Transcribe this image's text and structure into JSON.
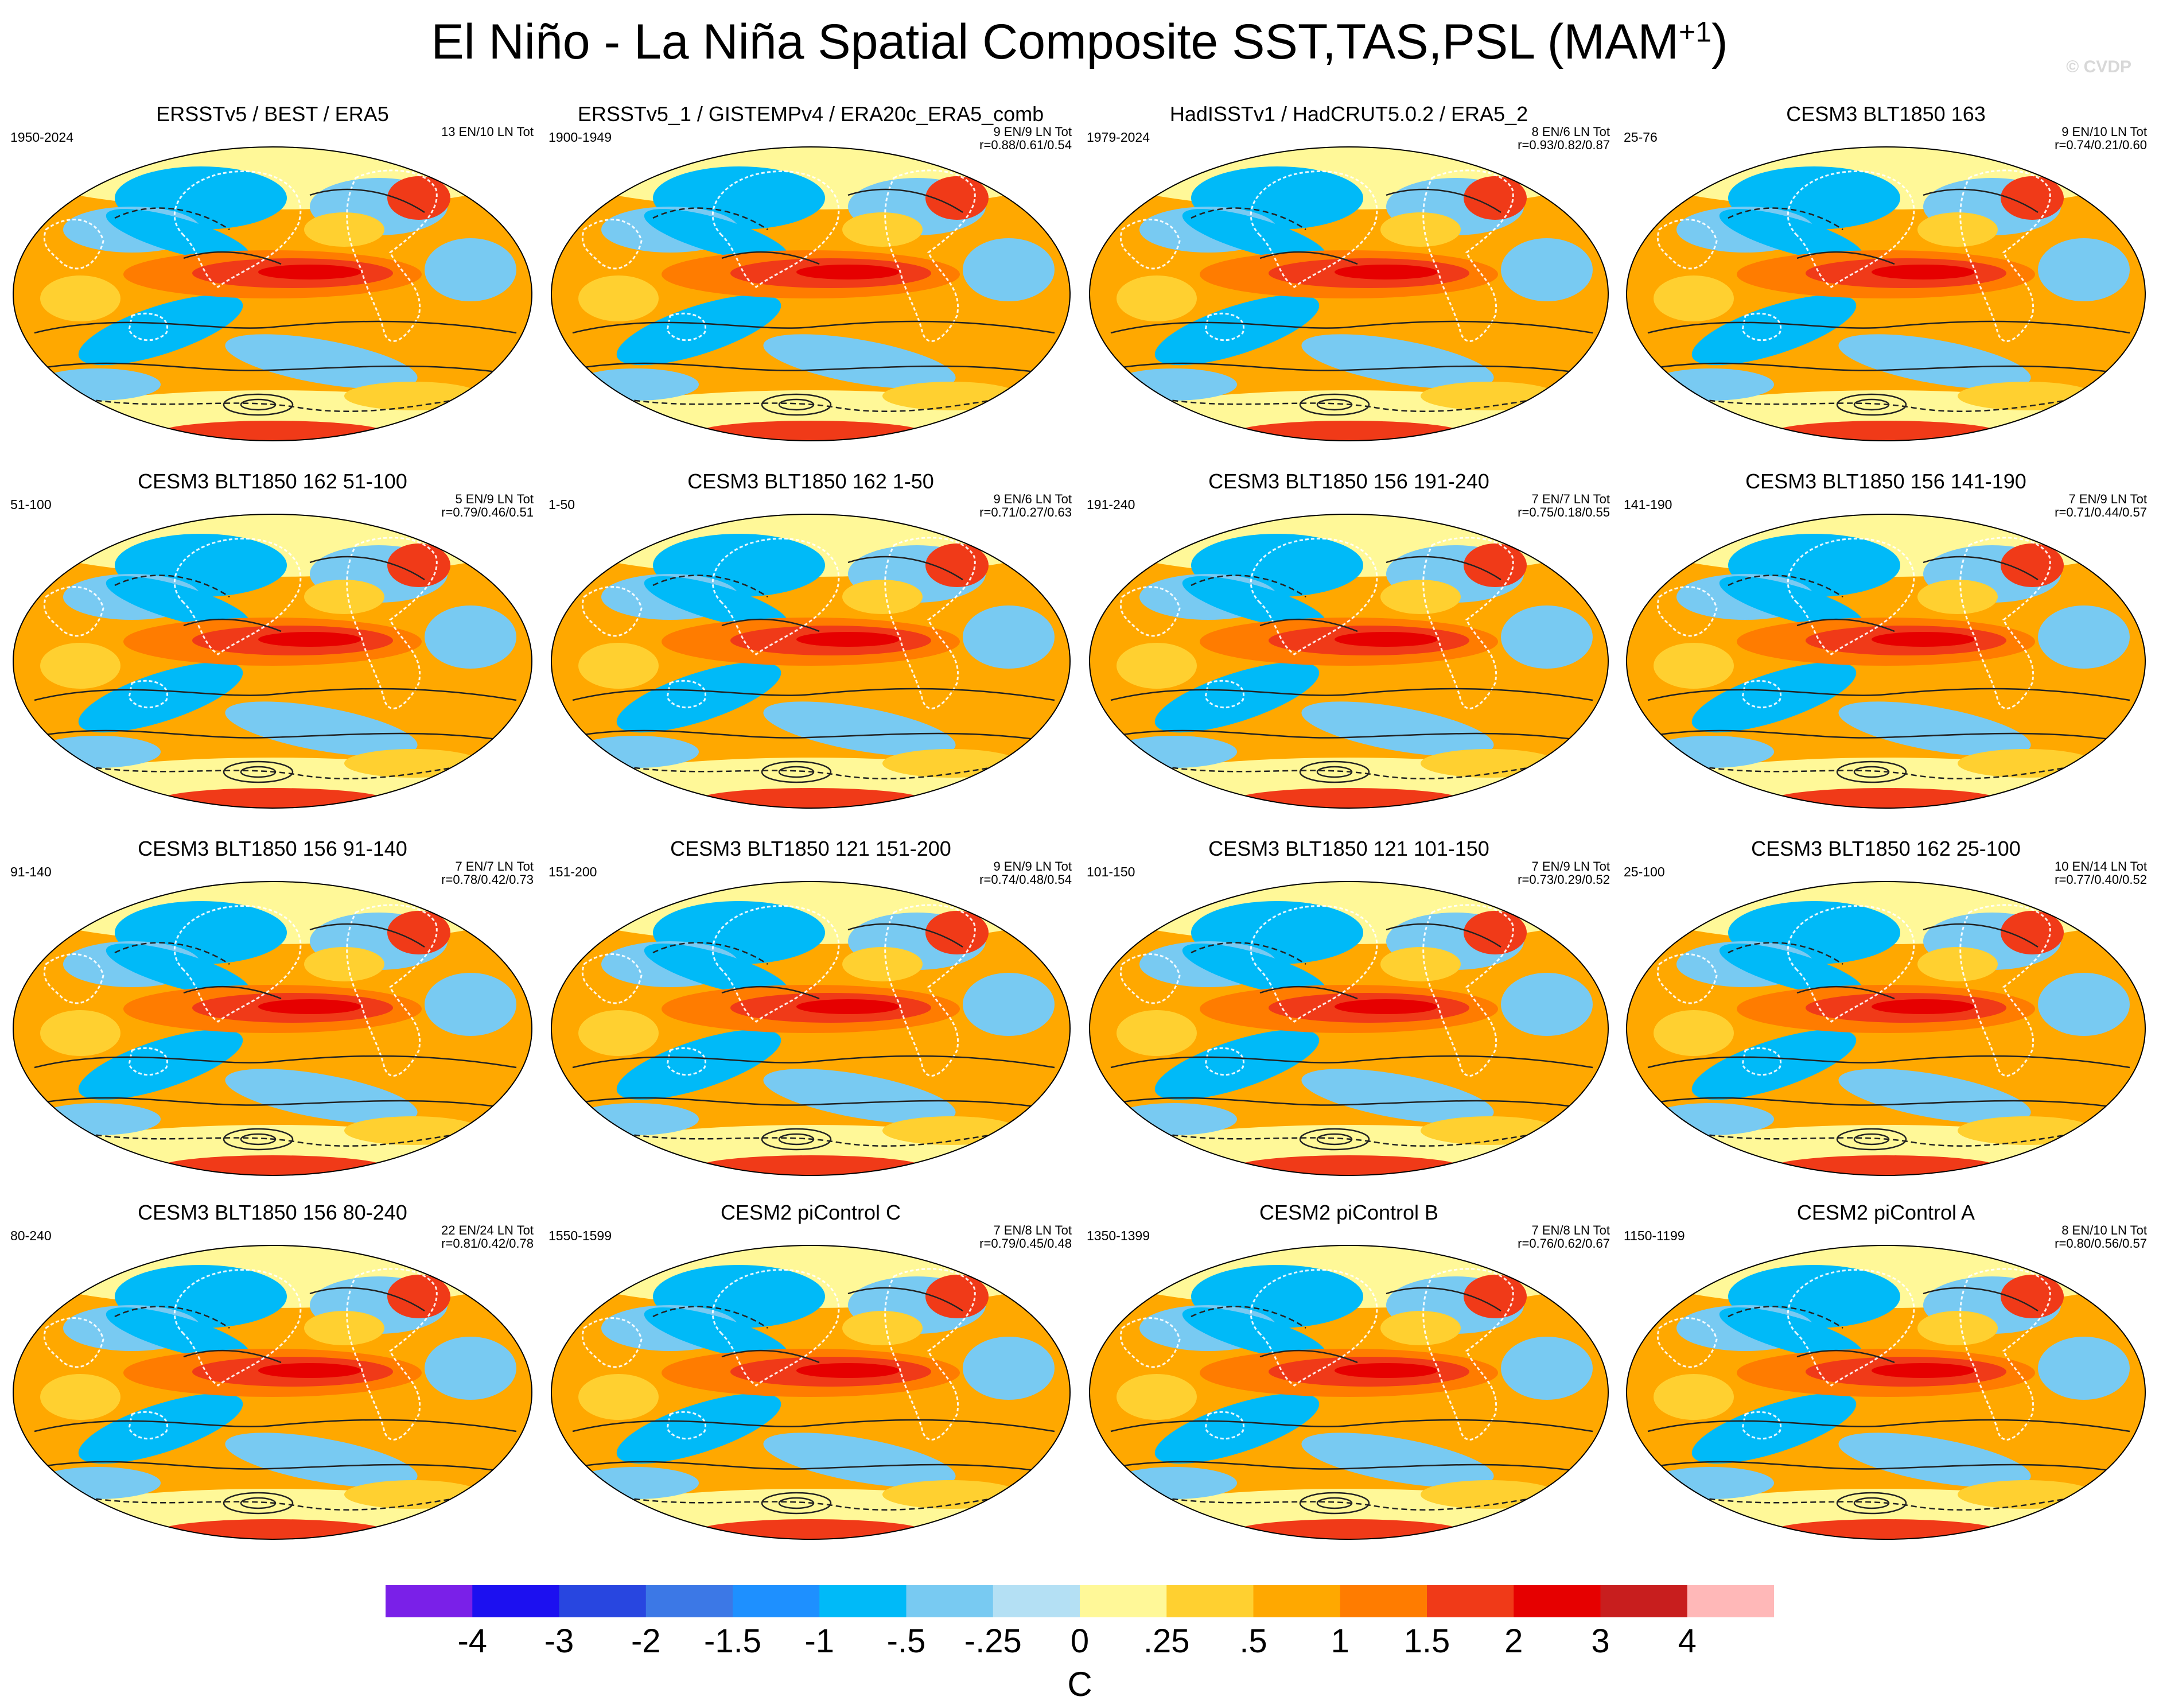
{
  "title_main": "El Niño - La Niña Spatial Composite SST,TAS,PSL (MAM",
  "title_sup": "+1",
  "title_close": ")",
  "watermark": "© CVDP",
  "panels": [
    {
      "title": "ERSSTv5 / BEST / ERA5",
      "years": "1950-2024",
      "counts": "13 EN/10 LN Tot",
      "corr": ""
    },
    {
      "title": "ERSSTv5_1 / GISTEMPv4 / ERA20c_ERA5_comb",
      "years": "1900-1949",
      "counts": "9 EN/9 LN Tot",
      "corr": "r=0.88/0.61/0.54"
    },
    {
      "title": "HadISSTv1 / HadCRUT5.0.2 / ERA5_2",
      "years": "1979-2024",
      "counts": "8 EN/6 LN Tot",
      "corr": "r=0.93/0.82/0.87"
    },
    {
      "title": "CESM3 BLT1850 163",
      "years": "25-76",
      "counts": "9 EN/10 LN Tot",
      "corr": "r=0.74/0.21/0.60"
    },
    {
      "title": "CESM3 BLT1850 162 51-100",
      "years": "51-100",
      "counts": "5 EN/9 LN Tot",
      "corr": "r=0.79/0.46/0.51"
    },
    {
      "title": "CESM3 BLT1850 162 1-50",
      "years": "1-50",
      "counts": "9 EN/6 LN Tot",
      "corr": "r=0.71/0.27/0.63"
    },
    {
      "title": "CESM3 BLT1850 156 191-240",
      "years": "191-240",
      "counts": "7 EN/7 LN Tot",
      "corr": "r=0.75/0.18/0.55"
    },
    {
      "title": "CESM3 BLT1850 156 141-190",
      "years": "141-190",
      "counts": "7 EN/9 LN Tot",
      "corr": "r=0.71/0.44/0.57"
    },
    {
      "title": "CESM3 BLT1850 156 91-140",
      "years": "91-140",
      "counts": "7 EN/7 LN Tot",
      "corr": "r=0.78/0.42/0.73"
    },
    {
      "title": "CESM3 BLT1850 121 151-200",
      "years": "151-200",
      "counts": "9 EN/9 LN Tot",
      "corr": "r=0.74/0.48/0.54"
    },
    {
      "title": "CESM3 BLT1850 121 101-150",
      "years": "101-150",
      "counts": "7 EN/9 LN Tot",
      "corr": "r=0.73/0.29/0.52"
    },
    {
      "title": "CESM3 BLT1850 162 25-100",
      "years": "25-100",
      "counts": "10 EN/14 LN Tot",
      "corr": "r=0.77/0.40/0.52"
    },
    {
      "title": "CESM3 BLT1850 156 80-240",
      "years": "80-240",
      "counts": "22 EN/24 LN Tot",
      "corr": "r=0.81/0.42/0.78"
    },
    {
      "title": "CESM2 piControl C",
      "years": "1550-1599",
      "counts": "7 EN/8 LN Tot",
      "corr": "r=0.79/0.45/0.48"
    },
    {
      "title": "CESM2 piControl B",
      "years": "1350-1399",
      "counts": "7 EN/8 LN Tot",
      "corr": "r=0.76/0.62/0.67"
    },
    {
      "title": "CESM2 piControl A",
      "years": "1150-1199",
      "counts": "8 EN/10 LN Tot",
      "corr": "r=0.80/0.56/0.57"
    }
  ],
  "chart_data": {
    "type": "heatmap",
    "description_units": "C",
    "colorbar": {
      "labels": [
        "-4",
        "-3",
        "-2",
        "-1.5",
        "-1",
        "-.5",
        "-.25",
        "0",
        ".25",
        ".5",
        "1",
        "1.5",
        "2",
        "3",
        "4"
      ],
      "levels": [
        -4,
        -3,
        -2,
        -1.5,
        -1,
        -0.5,
        -0.25,
        0,
        0.25,
        0.5,
        1,
        1.5,
        2,
        3,
        4
      ],
      "colors": [
        "#7a20e8",
        "#1c10f0",
        "#2846e0",
        "#3c78e6",
        "#1e90ff",
        "#00baf8",
        "#78caf2",
        "#b4e0f4",
        "#fff898",
        "#ffd030",
        "#ffa800",
        "#ff7c00",
        "#f03a18",
        "#e60000",
        "#c81e1e",
        "#ffb8b8"
      ],
      "units": "C"
    }
  }
}
